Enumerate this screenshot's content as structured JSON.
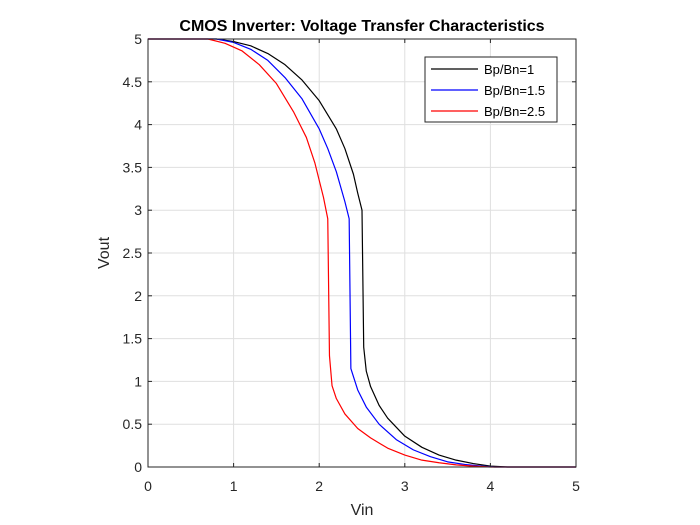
{
  "chart_data": {
    "type": "line",
    "title": "CMOS Inverter: Voltage Transfer Characteristics",
    "xlabel": "Vin",
    "ylabel": "Vout",
    "xlim": [
      0,
      5
    ],
    "ylim": [
      0,
      5
    ],
    "xticks": [
      0,
      1,
      2,
      3,
      4,
      5
    ],
    "yticks": [
      0,
      0.5,
      1,
      1.5,
      2,
      2.5,
      3,
      3.5,
      4,
      4.5,
      5
    ],
    "xtick_labels": [
      "0",
      "1",
      "2",
      "3",
      "4",
      "5"
    ],
    "ytick_labels": [
      "0",
      "0.5",
      "1",
      "1.5",
      "2",
      "2.5",
      "3",
      "3.5",
      "4",
      "4.5",
      "5"
    ],
    "grid": true,
    "legend_position": "top-right",
    "series": [
      {
        "name": "Bp/Bn=1",
        "color": "#000000",
        "x": [
          0,
          0.6,
          0.8,
          1.0,
          1.2,
          1.4,
          1.6,
          1.8,
          2.0,
          2.2,
          2.3,
          2.4,
          2.45,
          2.5,
          2.52,
          2.55,
          2.6,
          2.7,
          2.8,
          3.0,
          3.2,
          3.4,
          3.6,
          3.8,
          4.0,
          4.2,
          5.0
        ],
        "y": [
          5,
          5,
          5,
          4.97,
          4.92,
          4.83,
          4.7,
          4.52,
          4.28,
          3.95,
          3.72,
          3.42,
          3.2,
          3.0,
          1.4,
          1.12,
          0.94,
          0.72,
          0.57,
          0.36,
          0.23,
          0.14,
          0.08,
          0.04,
          0.01,
          0,
          0
        ]
      },
      {
        "name": "Bp/Bn=1.5",
        "color": "#0000ff",
        "x": [
          0,
          0.6,
          0.8,
          1.0,
          1.2,
          1.4,
          1.6,
          1.8,
          2.0,
          2.1,
          2.2,
          2.3,
          2.35,
          2.37,
          2.45,
          2.55,
          2.7,
          2.9,
          3.1,
          3.3,
          3.5,
          3.7,
          3.9,
          4.05,
          5.0
        ],
        "y": [
          5,
          5,
          5,
          4.96,
          4.88,
          4.75,
          4.55,
          4.3,
          3.95,
          3.72,
          3.45,
          3.1,
          2.9,
          1.15,
          0.9,
          0.7,
          0.5,
          0.32,
          0.2,
          0.12,
          0.06,
          0.03,
          0.01,
          0,
          0
        ]
      },
      {
        "name": "Bp/Bn=2.5",
        "color": "#ff0000",
        "x": [
          0,
          0.5,
          0.7,
          0.9,
          1.1,
          1.3,
          1.5,
          1.7,
          1.85,
          1.95,
          2.05,
          2.1,
          2.12,
          2.15,
          2.2,
          2.3,
          2.45,
          2.6,
          2.8,
          3.0,
          3.2,
          3.4,
          3.6,
          3.8,
          4.0,
          5.0
        ],
        "y": [
          5,
          5,
          5,
          4.95,
          4.86,
          4.7,
          4.48,
          4.15,
          3.85,
          3.55,
          3.15,
          2.9,
          1.3,
          0.95,
          0.8,
          0.62,
          0.45,
          0.34,
          0.22,
          0.14,
          0.08,
          0.05,
          0.025,
          0.01,
          0,
          0
        ]
      }
    ]
  }
}
